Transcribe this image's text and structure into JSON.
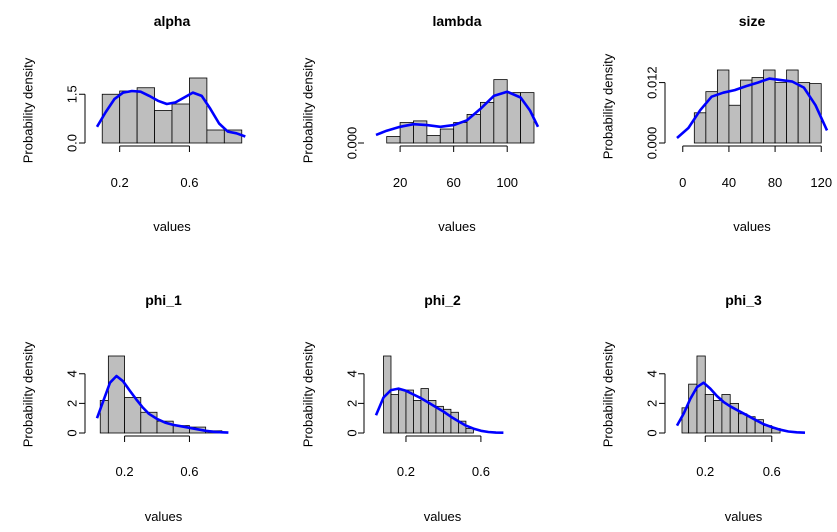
{
  "chart_data": [
    {
      "type": "histogram",
      "title": "alpha",
      "xlabel": "values",
      "ylabel": "Probability density",
      "xlim": [
        0.07,
        0.93
      ],
      "ylim": [
        0,
        2.0
      ],
      "xticks": [
        0.2,
        0.6
      ],
      "yticks": [
        0.0,
        1.5
      ],
      "ytick_labels": [
        "0.0",
        "1.5"
      ],
      "bins": [
        {
          "x0": 0.1,
          "x1": 0.2,
          "density": 1.5
        },
        {
          "x0": 0.2,
          "x1": 0.3,
          "density": 1.6
        },
        {
          "x0": 0.3,
          "x1": 0.4,
          "density": 1.7
        },
        {
          "x0": 0.4,
          "x1": 0.5,
          "density": 1.0
        },
        {
          "x0": 0.5,
          "x1": 0.6,
          "density": 1.2
        },
        {
          "x0": 0.6,
          "x1": 0.7,
          "density": 2.0
        },
        {
          "x0": 0.7,
          "x1": 0.8,
          "density": 0.4
        },
        {
          "x0": 0.8,
          "x1": 0.9,
          "density": 0.4
        }
      ],
      "density_curve": {
        "color": "#0000ff",
        "x": [
          0.07,
          0.12,
          0.17,
          0.22,
          0.27,
          0.32,
          0.37,
          0.42,
          0.47,
          0.52,
          0.57,
          0.62,
          0.67,
          0.72,
          0.77,
          0.82,
          0.87,
          0.92
        ],
        "y": [
          0.5,
          0.95,
          1.35,
          1.55,
          1.6,
          1.58,
          1.45,
          1.3,
          1.2,
          1.25,
          1.4,
          1.55,
          1.45,
          1.05,
          0.6,
          0.35,
          0.3,
          0.2
        ]
      }
    },
    {
      "type": "histogram",
      "title": "lambda",
      "xlabel": "values",
      "ylabel": "Probability density",
      "xlim": [
        2,
        123
      ],
      "ylim": [
        0,
        0.02
      ],
      "xticks": [
        20,
        60,
        100
      ],
      "yticks": [
        0
      ],
      "ytick_labels": [
        "0.000"
      ],
      "bins": [
        {
          "x0": 10,
          "x1": 20,
          "density": 0.002
        },
        {
          "x0": 20,
          "x1": 30,
          "density": 0.0063
        },
        {
          "x0": 30,
          "x1": 40,
          "density": 0.0068
        },
        {
          "x0": 40,
          "x1": 50,
          "density": 0.0023
        },
        {
          "x0": 50,
          "x1": 60,
          "density": 0.0043
        },
        {
          "x0": 60,
          "x1": 70,
          "density": 0.0063
        },
        {
          "x0": 70,
          "x1": 80,
          "density": 0.0088
        },
        {
          "x0": 80,
          "x1": 90,
          "density": 0.0125
        },
        {
          "x0": 90,
          "x1": 100,
          "density": 0.0195
        },
        {
          "x0": 100,
          "x1": 110,
          "density": 0.0155
        },
        {
          "x0": 110,
          "x1": 120,
          "density": 0.0155
        }
      ],
      "density_curve": {
        "color": "#0000ff",
        "x": [
          2,
          10,
          20,
          30,
          40,
          50,
          60,
          70,
          80,
          90,
          100,
          110,
          117,
          123
        ],
        "y": [
          0.0025,
          0.0038,
          0.005,
          0.0058,
          0.0055,
          0.005,
          0.0055,
          0.007,
          0.0105,
          0.0145,
          0.0158,
          0.014,
          0.01,
          0.005
        ]
      }
    },
    {
      "type": "histogram",
      "title": "size",
      "xlabel": "values",
      "ylabel": "Probability density",
      "xlim": [
        -5,
        125
      ],
      "ylim": [
        0,
        0.0145
      ],
      "xticks": [
        0,
        40,
        80,
        120
      ],
      "yticks": [
        0,
        0.012
      ],
      "ytick_labels": [
        "0.000",
        "0.012"
      ],
      "bins": [
        {
          "x0": 10,
          "x1": 20,
          "density": 0.006
        },
        {
          "x0": 20,
          "x1": 30,
          "density": 0.0102
        },
        {
          "x0": 30,
          "x1": 40,
          "density": 0.0145
        },
        {
          "x0": 40,
          "x1": 50,
          "density": 0.0075
        },
        {
          "x0": 50,
          "x1": 60,
          "density": 0.0125
        },
        {
          "x0": 60,
          "x1": 70,
          "density": 0.013
        },
        {
          "x0": 70,
          "x1": 80,
          "density": 0.0145
        },
        {
          "x0": 80,
          "x1": 90,
          "density": 0.012
        },
        {
          "x0": 90,
          "x1": 100,
          "density": 0.0145
        },
        {
          "x0": 100,
          "x1": 110,
          "density": 0.012
        },
        {
          "x0": 110,
          "x1": 120,
          "density": 0.0118
        }
      ],
      "density_curve": {
        "color": "#0000ff",
        "x": [
          -5,
          5,
          15,
          25,
          35,
          45,
          55,
          65,
          75,
          85,
          95,
          105,
          115,
          125
        ],
        "y": [
          0.001,
          0.003,
          0.0065,
          0.0092,
          0.01,
          0.0105,
          0.0113,
          0.012,
          0.0128,
          0.0125,
          0.0122,
          0.011,
          0.0075,
          0.0025
        ]
      }
    },
    {
      "type": "histogram",
      "title": "phi_1",
      "xlabel": "values",
      "ylabel": "Probability density",
      "xlim": [
        0.03,
        0.85
      ],
      "ylim": [
        0,
        5.2
      ],
      "xticks": [
        0.2,
        0.6
      ],
      "yticks": [
        0,
        2,
        4
      ],
      "ytick_labels": [
        "0",
        "2",
        "4"
      ],
      "bins": [
        {
          "x0": 0.05,
          "x1": 0.1,
          "density": 2.2
        },
        {
          "x0": 0.1,
          "x1": 0.2,
          "density": 5.2
        },
        {
          "x0": 0.2,
          "x1": 0.3,
          "density": 2.4
        },
        {
          "x0": 0.3,
          "x1": 0.4,
          "density": 1.4
        },
        {
          "x0": 0.4,
          "x1": 0.5,
          "density": 0.8
        },
        {
          "x0": 0.5,
          "x1": 0.6,
          "density": 0.5
        },
        {
          "x0": 0.6,
          "x1": 0.7,
          "density": 0.4
        },
        {
          "x0": 0.7,
          "x1": 0.8,
          "density": 0.15
        }
      ],
      "density_curve": {
        "color": "#0000ff",
        "x": [
          0.03,
          0.07,
          0.11,
          0.15,
          0.19,
          0.23,
          0.27,
          0.31,
          0.35,
          0.4,
          0.45,
          0.5,
          0.55,
          0.6,
          0.65,
          0.7,
          0.75,
          0.8,
          0.84
        ],
        "y": [
          1.0,
          2.2,
          3.4,
          3.85,
          3.5,
          2.9,
          2.3,
          1.75,
          1.3,
          0.95,
          0.7,
          0.55,
          0.45,
          0.35,
          0.25,
          0.15,
          0.08,
          0.05,
          0.03
        ]
      }
    },
    {
      "type": "histogram",
      "title": "phi_2",
      "xlabel": "values",
      "ylabel": "Probability density",
      "xlim": [
        0.04,
        0.75
      ],
      "ylim": [
        0,
        5.2
      ],
      "xticks": [
        0.2,
        0.6
      ],
      "yticks": [
        0,
        2,
        4
      ],
      "ytick_labels": [
        "0",
        "2",
        "4"
      ],
      "bins": [
        {
          "x0": 0.08,
          "x1": 0.12,
          "density": 5.2
        },
        {
          "x0": 0.12,
          "x1": 0.16,
          "density": 2.6
        },
        {
          "x0": 0.16,
          "x1": 0.2,
          "density": 2.9
        },
        {
          "x0": 0.2,
          "x1": 0.24,
          "density": 2.9
        },
        {
          "x0": 0.24,
          "x1": 0.28,
          "density": 2.2
        },
        {
          "x0": 0.28,
          "x1": 0.32,
          "density": 3.0
        },
        {
          "x0": 0.32,
          "x1": 0.36,
          "density": 2.2
        },
        {
          "x0": 0.36,
          "x1": 0.4,
          "density": 1.8
        },
        {
          "x0": 0.4,
          "x1": 0.44,
          "density": 1.6
        },
        {
          "x0": 0.44,
          "x1": 0.48,
          "density": 1.4
        },
        {
          "x0": 0.48,
          "x1": 0.52,
          "density": 0.8
        },
        {
          "x0": 0.52,
          "x1": 0.56,
          "density": 0.3
        }
      ],
      "density_curve": {
        "color": "#0000ff",
        "x": [
          0.04,
          0.08,
          0.12,
          0.16,
          0.2,
          0.24,
          0.28,
          0.32,
          0.36,
          0.4,
          0.44,
          0.48,
          0.52,
          0.56,
          0.6,
          0.64,
          0.68,
          0.72
        ],
        "y": [
          1.2,
          2.4,
          2.9,
          3.0,
          2.85,
          2.6,
          2.35,
          2.05,
          1.75,
          1.45,
          1.1,
          0.8,
          0.5,
          0.3,
          0.15,
          0.07,
          0.03,
          0.02
        ]
      }
    },
    {
      "type": "histogram",
      "title": "phi_3",
      "xlabel": "values",
      "ylabel": "Probability density",
      "xlim": [
        0.03,
        0.83
      ],
      "ylim": [
        0,
        5.2
      ],
      "xticks": [
        0.2,
        0.6
      ],
      "yticks": [
        0,
        2,
        4
      ],
      "ytick_labels": [
        "0",
        "2",
        "4"
      ],
      "bins": [
        {
          "x0": 0.06,
          "x1": 0.1,
          "density": 1.7
        },
        {
          "x0": 0.1,
          "x1": 0.15,
          "density": 3.3
        },
        {
          "x0": 0.15,
          "x1": 0.2,
          "density": 5.2
        },
        {
          "x0": 0.2,
          "x1": 0.25,
          "density": 2.6
        },
        {
          "x0": 0.25,
          "x1": 0.3,
          "density": 2.2
        },
        {
          "x0": 0.3,
          "x1": 0.35,
          "density": 2.6
        },
        {
          "x0": 0.35,
          "x1": 0.4,
          "density": 2.0
        },
        {
          "x0": 0.4,
          "x1": 0.45,
          "density": 1.3
        },
        {
          "x0": 0.45,
          "x1": 0.5,
          "density": 1.1
        },
        {
          "x0": 0.5,
          "x1": 0.55,
          "density": 0.9
        },
        {
          "x0": 0.55,
          "x1": 0.6,
          "density": 0.5
        },
        {
          "x0": 0.6,
          "x1": 0.65,
          "density": 0.3
        }
      ],
      "density_curve": {
        "color": "#0000ff",
        "x": [
          0.03,
          0.07,
          0.11,
          0.15,
          0.19,
          0.23,
          0.27,
          0.31,
          0.35,
          0.4,
          0.45,
          0.5,
          0.55,
          0.6,
          0.65,
          0.7,
          0.75,
          0.8
        ],
        "y": [
          0.5,
          1.3,
          2.3,
          3.1,
          3.4,
          3.0,
          2.5,
          2.1,
          1.8,
          1.5,
          1.2,
          0.9,
          0.6,
          0.4,
          0.22,
          0.1,
          0.05,
          0.02
        ]
      }
    }
  ]
}
